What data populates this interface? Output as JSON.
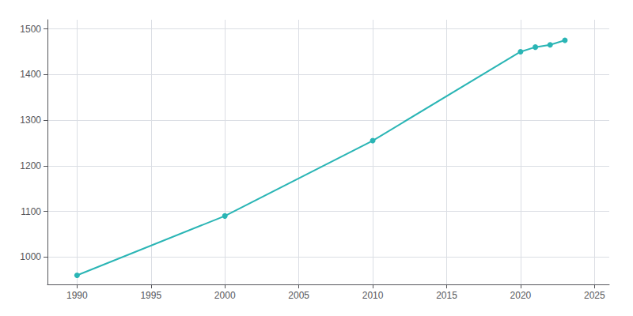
{
  "chart_data": {
    "type": "line",
    "x": [
      1990,
      2000,
      2010,
      2020,
      2021,
      2022,
      2023
    ],
    "values": [
      960,
      1090,
      1255,
      1450,
      1460,
      1465,
      1475
    ],
    "color": "#2ab5b5",
    "marker": "circle",
    "xlim": [
      1988,
      2026
    ],
    "ylim": [
      940,
      1520
    ],
    "xticks": [
      1990,
      1995,
      2000,
      2005,
      2010,
      2015,
      2020,
      2025
    ],
    "yticks": [
      1000,
      1100,
      1200,
      1300,
      1400,
      1500
    ],
    "grid": true
  }
}
